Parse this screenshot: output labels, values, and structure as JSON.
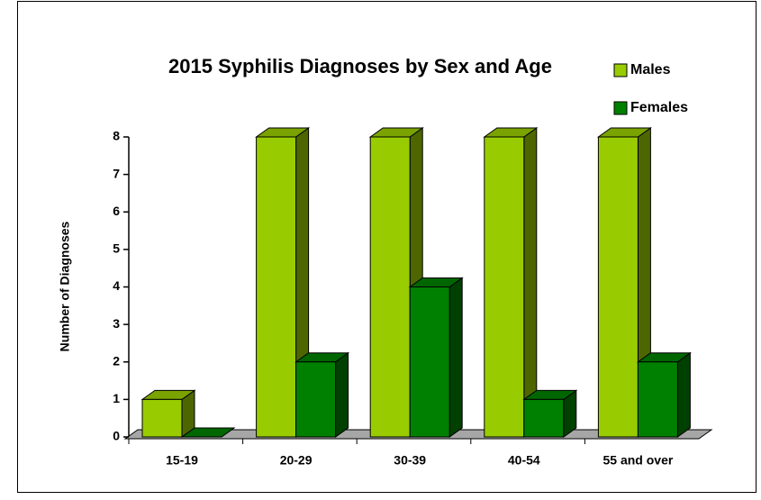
{
  "chart_data": {
    "type": "bar3d",
    "title": "2015 Syphilis Diagnoses by Sex and Age",
    "y_label": "Number of Diagnoses",
    "categories": [
      "15-19",
      "20-29",
      "30-39",
      "40-54",
      "55 and over"
    ],
    "series": [
      {
        "name": "Males",
        "color": "#99cc00",
        "values": [
          1,
          8,
          8,
          8,
          8
        ]
      },
      {
        "name": "Females",
        "color": "#008000",
        "values": [
          0,
          2,
          4,
          1,
          2
        ]
      }
    ],
    "ylim": [
      0,
      8
    ],
    "yticks": [
      0,
      1,
      2,
      3,
      4,
      5,
      6,
      7,
      8
    ],
    "legend": "upper right"
  }
}
